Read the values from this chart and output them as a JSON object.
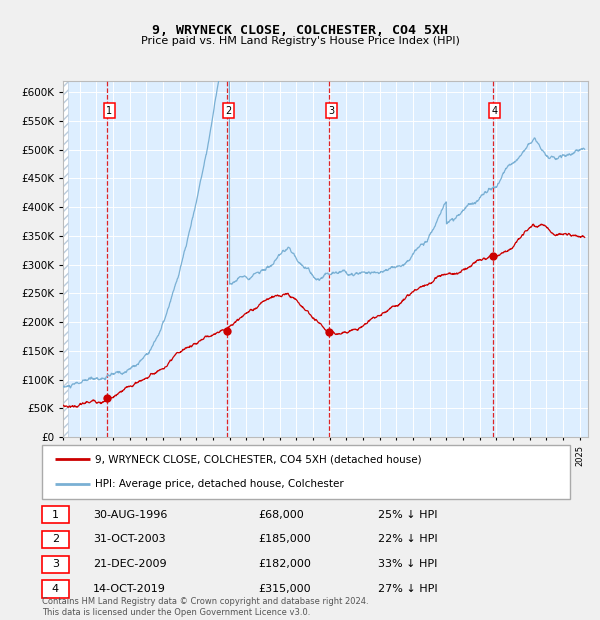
{
  "title": "9, WRYNECK CLOSE, COLCHESTER, CO4 5XH",
  "subtitle": "Price paid vs. HM Land Registry's House Price Index (HPI)",
  "footer": "Contains HM Land Registry data © Crown copyright and database right 2024.\nThis data is licensed under the Open Government Licence v3.0.",
  "legend_red": "9, WRYNECK CLOSE, COLCHESTER, CO4 5XH (detached house)",
  "legend_blue": "HPI: Average price, detached house, Colchester",
  "sales": [
    {
      "label": "1",
      "date_num": 1996.66,
      "price": 68000,
      "note": "30-AUG-1996",
      "pct": "25% ↓ HPI"
    },
    {
      "label": "2",
      "date_num": 2003.83,
      "price": 185000,
      "note": "31-OCT-2003",
      "pct": "22% ↓ HPI"
    },
    {
      "label": "3",
      "date_num": 2009.97,
      "price": 182000,
      "note": "21-DEC-2009",
      "pct": "33% ↓ HPI"
    },
    {
      "label": "4",
      "date_num": 2019.79,
      "price": 315000,
      "note": "14-OCT-2019",
      "pct": "27% ↓ HPI"
    }
  ],
  "ylim": [
    0,
    620000
  ],
  "xlim_start": 1994.0,
  "xlim_end": 2025.5,
  "plot_bg": "#ddeeff",
  "grid_color": "#ffffff",
  "red_color": "#cc0000",
  "blue_color": "#7ab0d4",
  "hatch_color": "#bbccdd"
}
